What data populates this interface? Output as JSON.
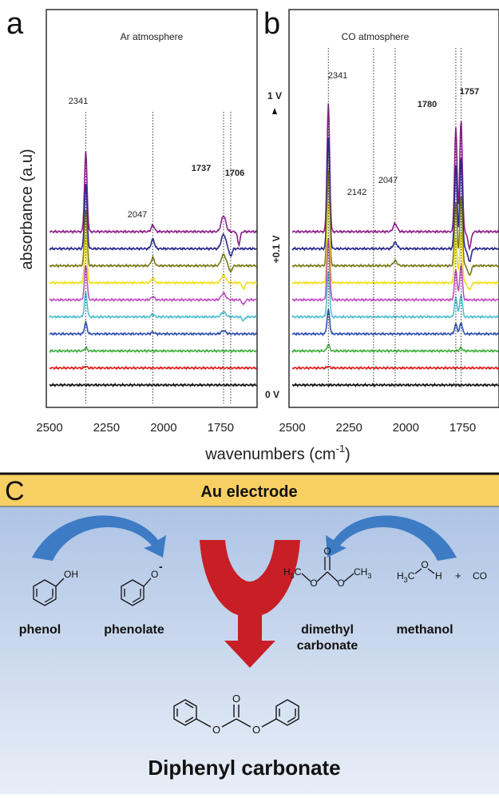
{
  "panel_labels": {
    "a": "a",
    "b": "b",
    "c": "C"
  },
  "colors": {
    "spectra": [
      "#8e1f8c",
      "#2c2a8c",
      "#7a7a1a",
      "#f0e020",
      "#c050c0",
      "#50c0d0",
      "#3050b0",
      "#40b040",
      "#e02020",
      "#101010"
    ],
    "banner": "#f7cf63",
    "gradient_top": "#a7bfe3",
    "gradient_bottom": "#e8eef7",
    "arrow_blue": "#3d7cc4",
    "arrow_red": "#c81e26"
  },
  "axes": {
    "xlabel_main": "wavenumbers (cm",
    "xlabel_sup": "-1",
    "xlabel_close": ")",
    "ylabel": "absorbance (a.u)"
  },
  "chart_data": [
    {
      "type": "line",
      "title": "Ar atmosphere",
      "x_ticks": [
        "2500",
        "2250",
        "2000",
        "1750"
      ],
      "xlim": [
        2500,
        1590
      ],
      "series_count": 10,
      "peaks": [
        {
          "x": 2341,
          "label": "2341",
          "bold": false
        },
        {
          "x": 2047,
          "label": "2047",
          "bold": false
        },
        {
          "x": 1737,
          "label": "1737",
          "bold": true
        },
        {
          "x": 1706,
          "label": "1706",
          "bold": true
        }
      ]
    },
    {
      "type": "line",
      "title": "CO atmosphere",
      "x_ticks": [
        "2500",
        "2250",
        "2000",
        "1750"
      ],
      "xlim": [
        2500,
        1590
      ],
      "series_count": 10,
      "peaks": [
        {
          "x": 2341,
          "label": "2341",
          "bold": false
        },
        {
          "x": 2142,
          "label": "2142",
          "bold": false
        },
        {
          "x": 2047,
          "label": "2047",
          "bold": false
        },
        {
          "x": 1780,
          "label": "1780",
          "bold": true
        },
        {
          "x": 1757,
          "label": "1757",
          "bold": true
        }
      ]
    }
  ],
  "potentials": {
    "top": "1 V",
    "mid": "+0.1 V",
    "bottom": "0 V"
  },
  "diagram": {
    "banner": "Au electrode",
    "molecules": {
      "phenol": "phenol",
      "phenolate": "phenolate",
      "dmc_line1": "dimethyl",
      "dmc_line2": "carbonate",
      "methanol": "methanol",
      "product": "Diphenyl carbonate"
    },
    "atoms": {
      "oh": "OH",
      "o": "O",
      "minus": "-",
      "h3c": "H",
      "ch3": "CH",
      "three": "3",
      "c": "C",
      "h": "H",
      "plus": "+",
      "co": "CO"
    }
  }
}
